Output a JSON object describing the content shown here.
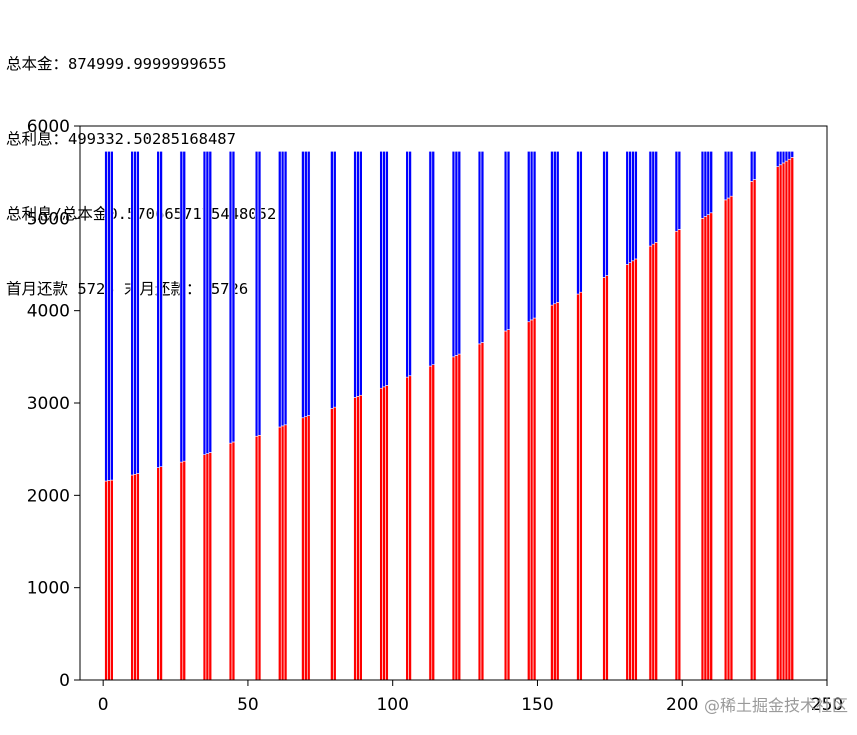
{
  "header": {
    "line1": "总本金：874999.9999999655",
    "line2": "总利息：499332.50285168487",
    "line3": "总利息/总本金0.5706657175448052",
    "line4": "首月还款 5726 末月还款： 5726"
  },
  "chart_data": {
    "type": "bar",
    "stacked": true,
    "title": "",
    "xlabel": "",
    "ylabel": "",
    "xlim": [
      -8,
      250
    ],
    "ylim": [
      0,
      6000
    ],
    "xticks": [
      0,
      50,
      100,
      150,
      200,
      250
    ],
    "yticks": [
      0,
      1000,
      2000,
      3000,
      4000,
      5000,
      6000
    ],
    "grid": false,
    "legend": "none",
    "colors": {
      "principal": "#ff0000",
      "interest": "#0000ff",
      "bar_outline": "#ffffff"
    },
    "total_payment": 5726,
    "x": [
      1,
      2,
      3,
      10,
      11,
      12,
      19,
      20,
      27,
      28,
      35,
      36,
      37,
      44,
      45,
      53,
      54,
      61,
      62,
      63,
      69,
      70,
      71,
      79,
      80,
      87,
      88,
      89,
      96,
      97,
      98,
      105,
      106,
      113,
      114,
      121,
      122,
      123,
      130,
      131,
      139,
      140,
      147,
      148,
      149,
      155,
      156,
      157,
      164,
      165,
      173,
      174,
      181,
      182,
      183,
      184,
      189,
      190,
      191,
      198,
      199,
      207,
      208,
      209,
      210,
      215,
      216,
      217,
      224,
      225,
      233,
      234,
      235,
      236,
      237,
      238
    ],
    "series": [
      {
        "key": "principal",
        "values": [
          2155,
          2160,
          2165,
          2220,
          2228,
          2236,
          2300,
          2310,
          2360,
          2370,
          2440,
          2452,
          2464,
          2565,
          2578,
          2640,
          2650,
          2740,
          2752,
          2764,
          2840,
          2852,
          2864,
          2940,
          2955,
          3060,
          3072,
          3084,
          3160,
          3175,
          3190,
          3280,
          3295,
          3400,
          3415,
          3500,
          3515,
          3530,
          3640,
          3655,
          3780,
          3795,
          3880,
          3900,
          3920,
          4060,
          4075,
          4090,
          4180,
          4200,
          4360,
          4380,
          4500,
          4520,
          4540,
          4560,
          4700,
          4720,
          4740,
          4860,
          4880,
          5000,
          5020,
          5040,
          5060,
          5200,
          5220,
          5240,
          5400,
          5420,
          5560,
          5580,
          5600,
          5620,
          5640,
          5660
        ]
      }
    ]
  },
  "watermark": "@稀土掘金技术社区"
}
